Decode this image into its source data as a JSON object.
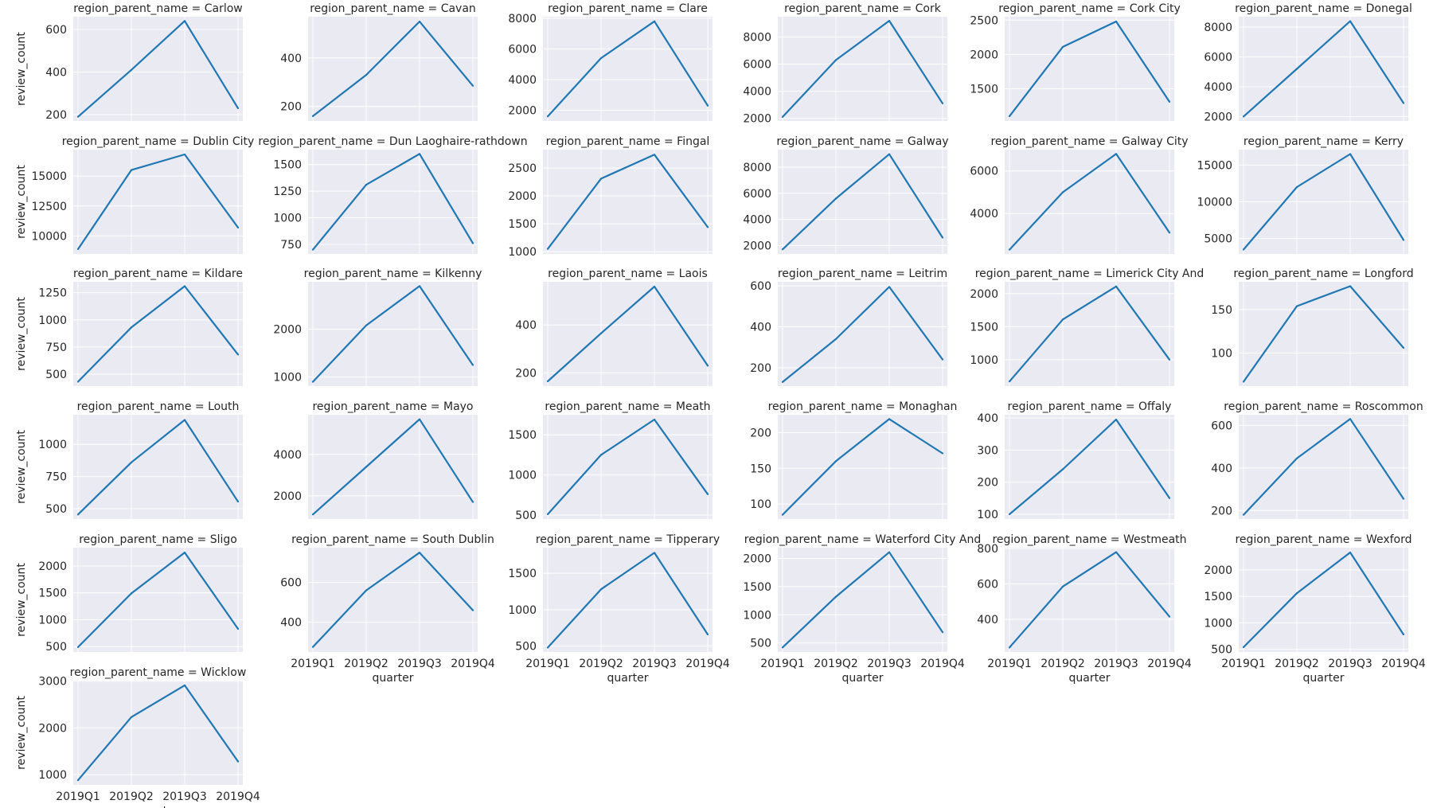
{
  "chart_data": {
    "type": "line",
    "facet_prefix": "region_parent_name = ",
    "xlabel": "quarter",
    "ylabel": "review_count",
    "x": [
      "2019Q1",
      "2019Q2",
      "2019Q3",
      "2019Q4"
    ],
    "grid": true,
    "line_color": "#1f77b4",
    "panel_background": "#eaeaf2",
    "panels": [
      {
        "name": "Carlow",
        "values": [
          190,
          410,
          640,
          230
        ],
        "ticks": [
          200,
          400,
          600
        ],
        "ylim": [
          170,
          660
        ]
      },
      {
        "name": "Cavan",
        "values": [
          160,
          330,
          550,
          285
        ],
        "ticks": [
          200,
          400
        ],
        "ylim": [
          140,
          570
        ]
      },
      {
        "name": "Clare",
        "values": [
          1600,
          5400,
          7800,
          2300
        ],
        "ticks": [
          2000,
          4000,
          6000,
          8000
        ],
        "ylim": [
          1300,
          8100
        ]
      },
      {
        "name": "Cork",
        "values": [
          2100,
          6300,
          9200,
          3100
        ],
        "ticks": [
          2000,
          4000,
          6000,
          8000
        ],
        "ylim": [
          1800,
          9500
        ]
      },
      {
        "name": "Cork City",
        "values": [
          1100,
          2110,
          2480,
          1310
        ],
        "ticks": [
          1500,
          2000,
          2500
        ],
        "ylim": [
          1030,
          2550
        ]
      },
      {
        "name": "Donegal",
        "values": [
          2000,
          5200,
          8400,
          2900
        ],
        "ticks": [
          2000,
          4000,
          6000,
          8000
        ],
        "ylim": [
          1700,
          8700
        ]
      },
      {
        "name": "Dublin City",
        "values": [
          8900,
          15500,
          16800,
          10700
        ],
        "ticks": [
          10000,
          12500,
          15000
        ],
        "ylim": [
          8500,
          17200
        ]
      },
      {
        "name": "Dun Laoghaire-rathdown",
        "values": [
          700,
          1310,
          1600,
          760
        ],
        "ticks": [
          750,
          1000,
          1250,
          1500
        ],
        "ylim": [
          660,
          1640
        ]
      },
      {
        "name": "Fingal",
        "values": [
          1050,
          2310,
          2740,
          1440
        ],
        "ticks": [
          1000,
          1500,
          2000,
          2500
        ],
        "ylim": [
          960,
          2830
        ]
      },
      {
        "name": "Galway",
        "values": [
          1700,
          5600,
          9000,
          2600
        ],
        "ticks": [
          2000,
          4000,
          6000,
          8000
        ],
        "ylim": [
          1350,
          9350
        ]
      },
      {
        "name": "Galway City",
        "values": [
          2300,
          5000,
          6800,
          3100
        ],
        "ticks": [
          4000,
          6000
        ],
        "ylim": [
          2100,
          7000
        ]
      },
      {
        "name": "Kerry",
        "values": [
          3500,
          12000,
          16500,
          4800
        ],
        "ticks": [
          5000,
          10000,
          15000
        ],
        "ylim": [
          2900,
          17100
        ]
      },
      {
        "name": "Kildare",
        "values": [
          430,
          930,
          1310,
          680
        ],
        "ticks": [
          500,
          750,
          1000,
          1250
        ],
        "ylim": [
          390,
          1350
        ]
      },
      {
        "name": "Kilkenny",
        "values": [
          900,
          2080,
          2900,
          1250
        ],
        "ticks": [
          1000,
          2000
        ],
        "ylim": [
          810,
          2990
        ]
      },
      {
        "name": "Laois",
        "values": [
          165,
          365,
          560,
          230
        ],
        "ticks": [
          200,
          400
        ],
        "ylim": [
          145,
          580
        ]
      },
      {
        "name": "Leitrim",
        "values": [
          130,
          340,
          595,
          240
        ],
        "ticks": [
          200,
          400,
          600
        ],
        "ylim": [
          110,
          620
        ]
      },
      {
        "name": "Limerick City And",
        "values": [
          670,
          1610,
          2110,
          1000
        ],
        "ticks": [
          1000,
          1500,
          2000
        ],
        "ylim": [
          600,
          2180
        ]
      },
      {
        "name": "Longford",
        "values": [
          67,
          154,
          177,
          106
        ],
        "ticks": [
          100,
          150
        ],
        "ylim": [
          62,
          182
        ]
      },
      {
        "name": "Louth",
        "values": [
          455,
          860,
          1190,
          555
        ],
        "ticks": [
          500,
          750,
          1000
        ],
        "ylim": [
          420,
          1230
        ]
      },
      {
        "name": "Mayo",
        "values": [
          1100,
          3400,
          5700,
          1700
        ],
        "ticks": [
          2000,
          4000
        ],
        "ylim": [
          880,
          5920
        ]
      },
      {
        "name": "Meath",
        "values": [
          510,
          1250,
          1690,
          760
        ],
        "ticks": [
          500,
          1000,
          1500
        ],
        "ylim": [
          450,
          1750
        ]
      },
      {
        "name": "Monaghan",
        "values": [
          85,
          160,
          219,
          171
        ],
        "ticks": [
          100,
          150,
          200
        ],
        "ylim": [
          79,
          225
        ]
      },
      {
        "name": "Offaly",
        "values": [
          100,
          240,
          395,
          150
        ],
        "ticks": [
          100,
          200,
          300,
          400
        ],
        "ylim": [
          85,
          410
        ]
      },
      {
        "name": "Roscommon",
        "values": [
          180,
          445,
          630,
          255
        ],
        "ticks": [
          200,
          400,
          600
        ],
        "ylim": [
          160,
          650
        ]
      },
      {
        "name": "Sligo",
        "values": [
          490,
          1490,
          2250,
          830
        ],
        "ticks": [
          500,
          1000,
          1500,
          2000
        ],
        "ylim": [
          400,
          2340
        ]
      },
      {
        "name": "South Dublin",
        "values": [
          275,
          560,
          750,
          460
        ],
        "ticks": [
          400,
          600
        ],
        "ylim": [
          250,
          775
        ]
      },
      {
        "name": "Tipperary",
        "values": [
          480,
          1280,
          1780,
          660
        ],
        "ticks": [
          500,
          1000,
          1500
        ],
        "ylim": [
          420,
          1850
        ]
      },
      {
        "name": "Waterford City And",
        "values": [
          420,
          1320,
          2110,
          690
        ],
        "ticks": [
          500,
          1000,
          1500,
          2000
        ],
        "ylim": [
          340,
          2190
        ]
      },
      {
        "name": "Westmeath",
        "values": [
          240,
          585,
          780,
          415
        ],
        "ticks": [
          400,
          600,
          800
        ],
        "ylim": [
          215,
          805
        ]
      },
      {
        "name": "Wexford",
        "values": [
          540,
          1560,
          2330,
          780
        ],
        "ticks": [
          500,
          1000,
          1500,
          2000
        ],
        "ylim": [
          450,
          2420
        ]
      },
      {
        "name": "Wicklow",
        "values": [
          880,
          2230,
          2910,
          1280
        ],
        "ticks": [
          1000,
          2000,
          3000
        ],
        "ylim": [
          780,
          3010
        ]
      }
    ]
  }
}
